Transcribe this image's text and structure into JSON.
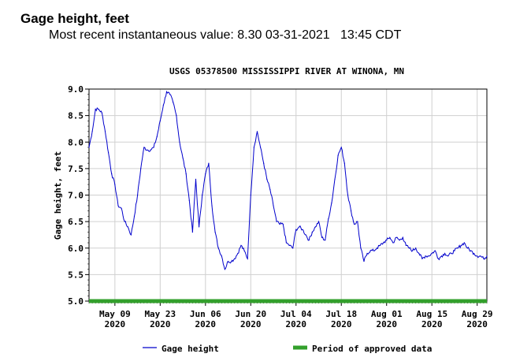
{
  "header": {
    "title": "Gage height, feet",
    "recent_value_text": "Most recent instantaneous value: 8.30 03-31-2021   13:45 CDT"
  },
  "chart_data": {
    "type": "line",
    "title": "USGS 05378500 MISSISSIPPI RIVER AT WINONA, MN",
    "xlabel": "",
    "ylabel": "Gage height, feet",
    "ylim": [
      5.0,
      9.0
    ],
    "yticks": [
      "9.0",
      "8.5",
      "8.0",
      "7.5",
      "7.0",
      "6.5",
      "6.0",
      "5.5",
      "5.0"
    ],
    "xlim_days": [
      0,
      123
    ],
    "xticks": [
      {
        "day": 8,
        "line1": "May 09",
        "line2": "2020"
      },
      {
        "day": 22,
        "line1": "May 23",
        "line2": "2020"
      },
      {
        "day": 36,
        "line1": "Jun 06",
        "line2": "2020"
      },
      {
        "day": 50,
        "line1": "Jun 20",
        "line2": "2020"
      },
      {
        "day": 64,
        "line1": "Jul 04",
        "line2": "2020"
      },
      {
        "day": 78,
        "line1": "Jul 18",
        "line2": "2020"
      },
      {
        "day": 92,
        "line1": "Aug 01",
        "line2": "2020"
      },
      {
        "day": 106,
        "line1": "Aug 15",
        "line2": "2020"
      },
      {
        "day": 120,
        "line1": "Aug 29",
        "line2": "2020"
      }
    ],
    "grid": true,
    "legend_position": "bottom",
    "series": [
      {
        "name": "Gage height",
        "color": "#0000cc",
        "x": [
          0,
          1,
          2,
          3,
          4,
          5,
          6,
          7,
          8,
          9,
          10,
          11,
          12,
          13,
          14,
          15,
          16,
          17,
          18,
          19,
          20,
          21,
          22,
          23,
          24,
          25,
          26,
          27,
          28,
          29,
          30,
          31,
          32,
          33,
          34,
          35,
          36,
          37,
          38,
          39,
          40,
          41,
          42,
          43,
          44,
          45,
          46,
          47,
          48,
          49,
          50,
          51,
          52,
          53,
          54,
          55,
          56,
          57,
          58,
          59,
          60,
          61,
          62,
          63,
          64,
          65,
          66,
          67,
          68,
          69,
          70,
          71,
          72,
          73,
          74,
          75,
          76,
          77,
          78,
          79,
          80,
          81,
          82,
          83,
          84,
          85,
          86,
          87,
          88,
          89,
          90,
          91,
          92,
          93,
          94,
          95,
          96,
          97,
          98,
          99,
          100,
          101,
          102,
          103,
          104,
          105,
          106,
          107,
          108,
          109,
          110,
          111,
          112,
          113,
          114,
          115,
          116,
          117,
          118,
          119,
          120,
          121,
          122,
          123
        ],
        "values": [
          7.9,
          8.2,
          8.62,
          8.62,
          8.55,
          8.2,
          7.8,
          7.4,
          7.2,
          6.8,
          6.75,
          6.5,
          6.4,
          6.25,
          6.6,
          7.0,
          7.5,
          7.9,
          7.85,
          7.85,
          7.9,
          8.1,
          8.4,
          8.7,
          8.95,
          8.9,
          8.75,
          8.5,
          8.0,
          7.7,
          7.4,
          6.9,
          6.3,
          7.3,
          6.4,
          7.0,
          7.4,
          7.6,
          6.8,
          6.3,
          6.0,
          5.85,
          5.6,
          5.75,
          5.75,
          5.8,
          5.9,
          6.05,
          5.95,
          5.8,
          7.0,
          7.9,
          8.2,
          7.9,
          7.6,
          7.3,
          7.1,
          6.8,
          6.5,
          6.45,
          6.45,
          6.1,
          6.05,
          6.0,
          6.35,
          6.4,
          6.35,
          6.25,
          6.15,
          6.3,
          6.4,
          6.5,
          6.2,
          6.15,
          6.55,
          6.85,
          7.3,
          7.75,
          7.9,
          7.6,
          7.0,
          6.7,
          6.45,
          6.5,
          6.0,
          5.75,
          5.9,
          5.95,
          5.95,
          6.0,
          6.05,
          6.1,
          6.15,
          6.2,
          6.1,
          6.2,
          6.15,
          6.2,
          6.05,
          6.0,
          5.95,
          6.0,
          5.9,
          5.8,
          5.85,
          5.85,
          5.9,
          5.95,
          5.8,
          5.85,
          5.9,
          5.85,
          5.9,
          5.95,
          6.0,
          6.05,
          6.1,
          6.0,
          5.95,
          5.9,
          5.85,
          5.85,
          5.8,
          5.85
        ]
      },
      {
        "name": "Period of approved data",
        "color": "#33a02c",
        "x": [
          0,
          123
        ],
        "values": [
          5.0,
          5.0
        ]
      }
    ]
  }
}
